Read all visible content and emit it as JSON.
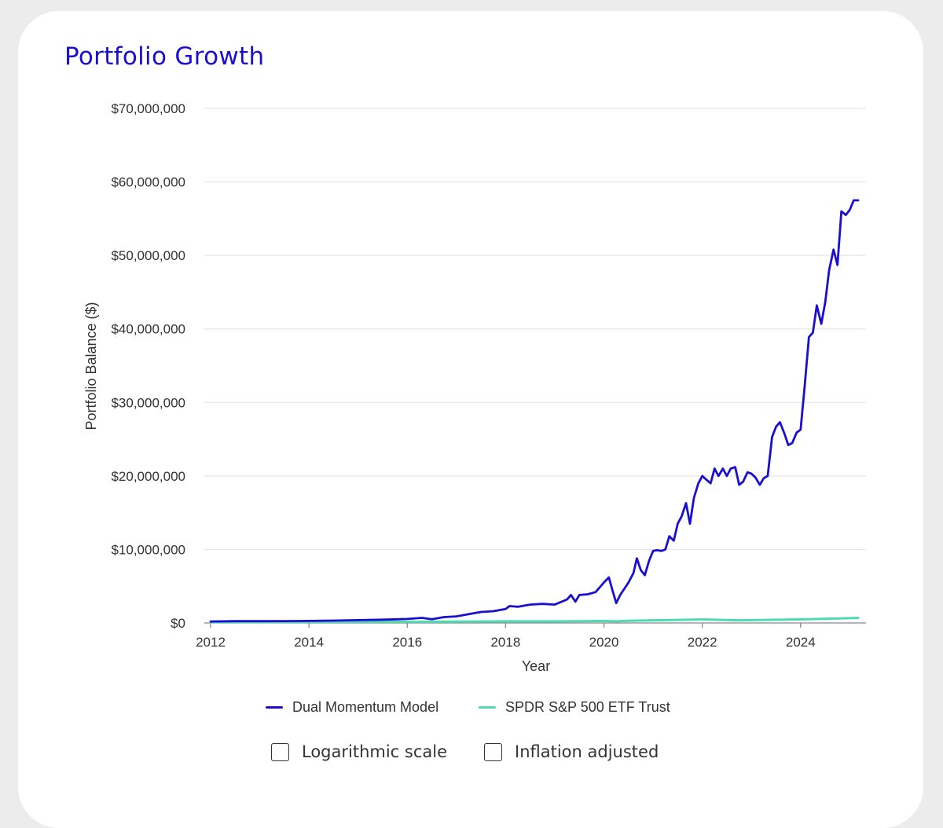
{
  "title": "Portfolio Growth",
  "colors": {
    "dual_momentum": "#1a0fd0",
    "spdr": "#4fd9b4",
    "grid": "#e6e6e6",
    "axis": "#888888"
  },
  "options": {
    "log_scale_label": "Logarithmic scale",
    "inflation_label": "Inflation adjusted",
    "log_scale_checked": false,
    "inflation_checked": false
  },
  "chart_data": {
    "type": "line",
    "title": "Portfolio Growth",
    "xlabel": "Year",
    "ylabel": "Portfolio Balance ($)",
    "xlim": [
      2012,
      2025.33
    ],
    "ylim": [
      0,
      70000000
    ],
    "x_ticks": [
      2012,
      2014,
      2016,
      2018,
      2020,
      2022,
      2024
    ],
    "x_tick_labels": [
      "2012",
      "2014",
      "2016",
      "2018",
      "2020",
      "2022",
      "2024"
    ],
    "y_ticks": [
      0,
      10000000,
      20000000,
      30000000,
      40000000,
      50000000,
      60000000,
      70000000
    ],
    "y_tick_labels": [
      "$0",
      "$10,000,000",
      "$20,000,000",
      "$30,000,000",
      "$40,000,000",
      "$50,000,000",
      "$60,000,000",
      "$70,000,000"
    ],
    "grid": true,
    "legend_position": "bottom",
    "series": [
      {
        "name": "Dual Momentum Model",
        "color": "#1a0fd0",
        "x": [
          2012.0,
          2012.5,
          2013.0,
          2013.5,
          2014.0,
          2014.5,
          2015.0,
          2015.5,
          2016.0,
          2016.3,
          2016.5,
          2016.75,
          2017.0,
          2017.25,
          2017.5,
          2017.75,
          2018.0,
          2018.08,
          2018.25,
          2018.5,
          2018.75,
          2019.0,
          2019.25,
          2019.33,
          2019.42,
          2019.5,
          2019.67,
          2019.83,
          2020.0,
          2020.1,
          2020.17,
          2020.25,
          2020.33,
          2020.5,
          2020.6,
          2020.67,
          2020.75,
          2020.83,
          2020.92,
          2021.0,
          2021.08,
          2021.17,
          2021.25,
          2021.33,
          2021.42,
          2021.5,
          2021.58,
          2021.67,
          2021.75,
          2021.83,
          2021.92,
          2022.0,
          2022.08,
          2022.17,
          2022.25,
          2022.33,
          2022.42,
          2022.5,
          2022.58,
          2022.67,
          2022.75,
          2022.83,
          2022.92,
          2023.0,
          2023.08,
          2023.17,
          2023.25,
          2023.33,
          2023.42,
          2023.5,
          2023.58,
          2023.67,
          2023.75,
          2023.83,
          2023.92,
          2024.0,
          2024.08,
          2024.17,
          2024.25,
          2024.33,
          2024.42,
          2024.5,
          2024.58,
          2024.67,
          2024.75,
          2024.83,
          2024.92,
          2025.0,
          2025.08,
          2025.17
        ],
        "values": [
          200000,
          250000,
          250000,
          260000,
          280000,
          320000,
          380000,
          450000,
          550000,
          700000,
          500000,
          800000,
          900000,
          1200000,
          1500000,
          1600000,
          1900000,
          2300000,
          2200000,
          2500000,
          2600000,
          2500000,
          3200000,
          3800000,
          2900000,
          3800000,
          3900000,
          4200000,
          5500000,
          6200000,
          4500000,
          2700000,
          3800000,
          5500000,
          6800000,
          8800000,
          7200000,
          6500000,
          8500000,
          9800000,
          9900000,
          9800000,
          10000000,
          11800000,
          11200000,
          13500000,
          14500000,
          16300000,
          13500000,
          17000000,
          19000000,
          20000000,
          19500000,
          19000000,
          21000000,
          20000000,
          21000000,
          20000000,
          21000000,
          21200000,
          18800000,
          19200000,
          20500000,
          20300000,
          19800000,
          18800000,
          19700000,
          20000000,
          25300000,
          26700000,
          27300000,
          25800000,
          24200000,
          24500000,
          25900000,
          26300000,
          32000000,
          38900000,
          39500000,
          43200000,
          40700000,
          43600000,
          48000000,
          50800000,
          48700000,
          56000000,
          55500000,
          56200000,
          57500000,
          57500000
        ]
      },
      {
        "name": "SPDR S&P 500 ETF Trust",
        "color": "#4fd9b4",
        "x": [
          2012.0,
          2013.0,
          2014.0,
          2015.0,
          2016.0,
          2017.0,
          2018.0,
          2019.0,
          2020.0,
          2020.25,
          2020.5,
          2021.0,
          2022.0,
          2022.75,
          2023.0,
          2024.0,
          2025.0,
          2025.17
        ],
        "values": [
          100000,
          110000,
          140000,
          160000,
          160000,
          180000,
          220000,
          210000,
          270000,
          220000,
          290000,
          360000,
          480000,
          360000,
          380000,
          480000,
          650000,
          680000
        ]
      }
    ]
  }
}
